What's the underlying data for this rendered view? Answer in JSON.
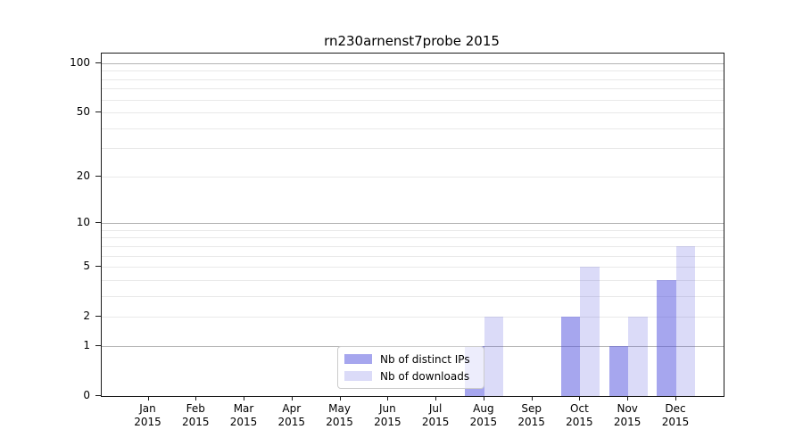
{
  "title": "rn230arnenst7probe 2015",
  "colors": {
    "ips_fill": "rgba(77,77,222,0.5)",
    "downloads_fill": "rgba(77,77,222,0.2)",
    "ips_legend_swatch": "#a6a6ee",
    "downloads_legend_swatch": "#dbdbf8",
    "grid_major": "#b4b4b4",
    "grid_minor": "#e9e9e9",
    "spine": "#1a1a1a",
    "text": "#000000"
  },
  "chart_data": {
    "type": "bar",
    "title": "rn230arnenst7probe 2015",
    "x_months": [
      "Jan",
      "Feb",
      "Mar",
      "Apr",
      "May",
      "Jun",
      "Jul",
      "Aug",
      "Sep",
      "Oct",
      "Nov",
      "Dec"
    ],
    "x_year": "2015",
    "categories": [
      "Jan 2015",
      "Feb 2015",
      "Mar 2015",
      "Apr 2015",
      "May 2015",
      "Jun 2015",
      "Jul 2015",
      "Aug 2015",
      "Sep 2015",
      "Oct 2015",
      "Nov 2015",
      "Dec 2015"
    ],
    "series": [
      {
        "name": "Nb of distinct IPs",
        "values": [
          0,
          0,
          0,
          0,
          0,
          0,
          0,
          1,
          0,
          2,
          1,
          4
        ]
      },
      {
        "name": "Nb of downloads",
        "values": [
          0,
          0,
          0,
          0,
          0,
          0,
          0,
          2,
          0,
          5,
          2,
          7
        ]
      }
    ],
    "y_ticks": [
      0,
      1,
      2,
      5,
      10,
      20,
      50,
      100
    ],
    "y_major_gridlines": [
      1,
      10,
      100
    ],
    "y_minor_gridlines": [
      2,
      3,
      4,
      5,
      6,
      7,
      8,
      9,
      20,
      30,
      40,
      50,
      60,
      70,
      80,
      90
    ],
    "y_scale": "log10(1+value)",
    "ylim": [
      0,
      115
    ],
    "grid": true,
    "legend_position": "lower center"
  },
  "legend": {
    "items": [
      {
        "label": "Nb of distinct IPs",
        "color_key": "ips"
      },
      {
        "label": "Nb of downloads",
        "color_key": "downloads"
      }
    ]
  }
}
